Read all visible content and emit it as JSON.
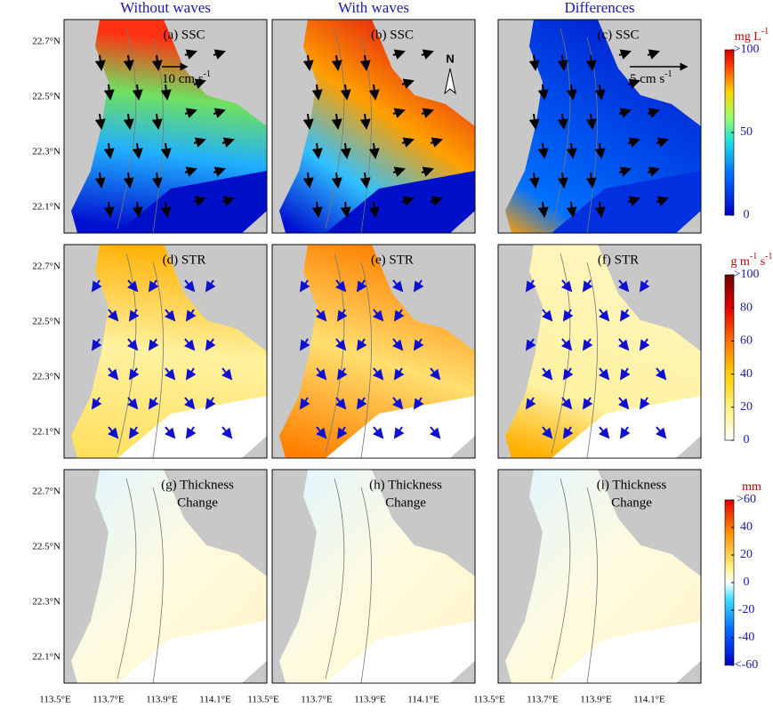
{
  "columns": [
    "Without waves",
    "With waves",
    "Differences"
  ],
  "rows": [
    {
      "panels": [
        "(a) SSC",
        "(b) SSC",
        "(c) SSC"
      ],
      "colorbar": {
        "unit": [
          "mg L",
          "-1"
        ],
        "lim": [
          0,
          100
        ],
        "ticks": [
          {
            "value": 100,
            "label": ">100"
          },
          50,
          0
        ]
      }
    },
    {
      "panels": [
        "(d) STR",
        "(e) STR",
        "(f) STR"
      ],
      "colorbar": {
        "unit": [
          "g m",
          "-1",
          " s",
          "-1"
        ],
        "lim": [
          0,
          100
        ],
        "ticks": [
          {
            "value": 100,
            "label": ">100"
          },
          80,
          60,
          40,
          20,
          0
        ]
      }
    },
    {
      "panels": [
        [
          "(g) Thickness",
          "Change"
        ],
        [
          "(h) Thickness",
          "Change"
        ],
        [
          "(i) Thickness",
          "Change"
        ]
      ],
      "colorbar": {
        "unit": [
          "mm"
        ],
        "lim": [
          -60,
          60
        ],
        "ticks": [
          {
            "value": 60,
            "label": ">60"
          },
          40,
          20,
          0,
          -20,
          -40,
          {
            "value": -60,
            "label": "<-60"
          }
        ]
      }
    }
  ],
  "scale_arrows": [
    [
      "10 cm s",
      "-1"
    ],
    [
      "5 cm s",
      "-1"
    ]
  ],
  "north": "N",
  "lat_labels": [
    "22.7°N",
    "22.5°N",
    "22.3°N",
    "22.1°N"
  ],
  "lon_labels": [
    "113.5°E",
    "113.7°E",
    "113.9°E",
    "114.1°E"
  ]
}
